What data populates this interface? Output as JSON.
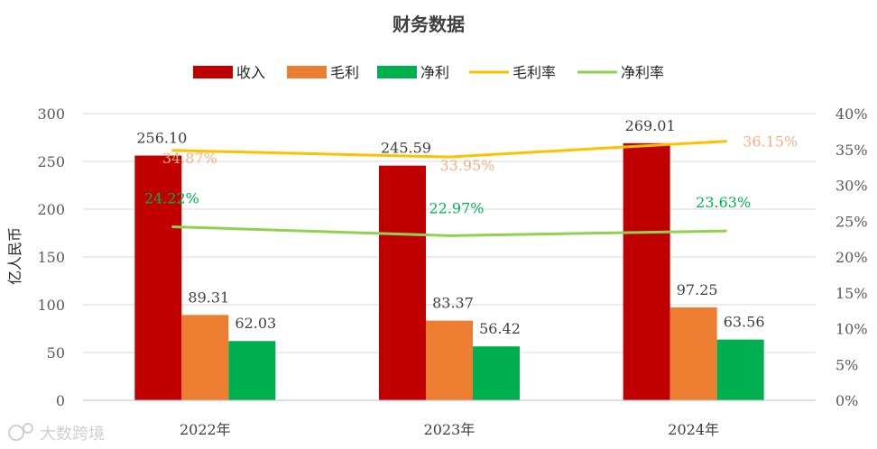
{
  "chart_data": {
    "type": "bar",
    "title": "财务数据",
    "ylabel": "亿人民币",
    "categories": [
      "2022年",
      "2023年",
      "2024年"
    ],
    "ylim": [
      0,
      300
    ],
    "yticks": [
      "0",
      "50",
      "100",
      "150",
      "200",
      "250",
      "300"
    ],
    "y2lim": [
      0,
      40
    ],
    "y2ticks": [
      "0%",
      "5%",
      "10%",
      "15%",
      "20%",
      "25%",
      "30%",
      "35%",
      "40%"
    ],
    "grid": true,
    "legend_position": "top",
    "series": [
      {
        "name": "收入",
        "type": "bar",
        "axis": "left",
        "color": "#C00000",
        "values": [
          256.1,
          245.59,
          269.01
        ],
        "labels": [
          "256.10",
          "245.59",
          "269.01"
        ]
      },
      {
        "name": "毛利",
        "type": "bar",
        "axis": "left",
        "color": "#ED7D31",
        "values": [
          89.31,
          83.37,
          97.25
        ],
        "labels": [
          "89.31",
          "83.37",
          "97.25"
        ]
      },
      {
        "name": "净利",
        "type": "bar",
        "axis": "left",
        "color": "#00B050",
        "values": [
          62.03,
          56.42,
          63.56
        ],
        "labels": [
          "62.03",
          "56.42",
          "63.56"
        ]
      },
      {
        "name": "毛利率",
        "type": "line",
        "axis": "right",
        "color": "#FFC000",
        "label_color": "#F4B183",
        "values": [
          34.87,
          33.95,
          36.15
        ],
        "labels": [
          "34.87%",
          "33.95%",
          "36.15%"
        ]
      },
      {
        "name": "净利率",
        "type": "line",
        "axis": "right",
        "color": "#92D050",
        "label_color": "#00B050",
        "values": [
          24.22,
          22.97,
          23.63
        ],
        "labels": [
          "24.22%",
          "22.97%",
          "23.63%"
        ]
      }
    ]
  },
  "watermark": "大数跨境"
}
